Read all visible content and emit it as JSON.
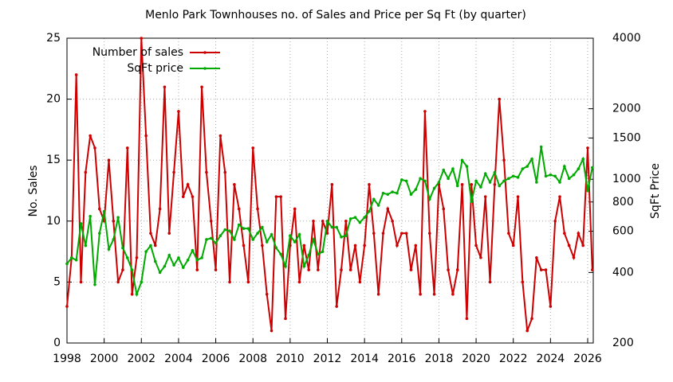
{
  "chart_data": {
    "type": "line",
    "title": "Menlo Park Townhouses no. of Sales and Price per Sq Ft (by quarter)",
    "y_label": "No. Sales",
    "y2_label": "SqFt Price",
    "legend": "top-left",
    "grid": true,
    "y2_log": true,
    "x": [
      1998,
      1998.25,
      1998.5,
      1998.75,
      1999,
      1999.25,
      1999.5,
      1999.75,
      2000,
      2000.25,
      2000.5,
      2000.75,
      2001,
      2001.25,
      2001.5,
      2001.75,
      2002,
      2002.25,
      2002.5,
      2002.75,
      2003,
      2003.25,
      2003.5,
      2003.75,
      2004,
      2004.25,
      2004.5,
      2004.75,
      2005,
      2005.25,
      2005.5,
      2005.75,
      2006,
      2006.25,
      2006.5,
      2006.75,
      2007,
      2007.25,
      2007.5,
      2007.75,
      2008,
      2008.25,
      2008.5,
      2008.75,
      2009,
      2009.25,
      2009.5,
      2009.75,
      2010,
      2010.25,
      2010.5,
      2010.75,
      2011,
      2011.25,
      2011.5,
      2011.75,
      2012,
      2012.25,
      2012.5,
      2012.75,
      2013,
      2013.25,
      2013.5,
      2013.75,
      2014,
      2014.25,
      2014.5,
      2014.75,
      2015,
      2015.25,
      2015.5,
      2015.75,
      2016,
      2016.25,
      2016.5,
      2016.75,
      2017,
      2017.25,
      2017.5,
      2017.75,
      2018,
      2018.25,
      2018.5,
      2018.75,
      2019,
      2019.25,
      2019.5,
      2019.75,
      2020,
      2020.25,
      2020.5,
      2020.75,
      2021,
      2021.25,
      2021.5,
      2021.75,
      2022,
      2022.25,
      2022.5,
      2022.75,
      2023,
      2023.25,
      2023.5,
      2023.75,
      2024,
      2024.25,
      2024.5,
      2024.75,
      2025,
      2025.25,
      2025.5,
      2025.75,
      2026,
      2026.25
    ],
    "series": [
      {
        "name": "Number of sales",
        "color": "#cc0000",
        "values": [
          3,
          7,
          22,
          5,
          14,
          17,
          16,
          11,
          10,
          15,
          10,
          5,
          6,
          16,
          4,
          7,
          25,
          17,
          9,
          8,
          11,
          21,
          9,
          14,
          19,
          12,
          13,
          12,
          6,
          21,
          14,
          10,
          6,
          17,
          14,
          5,
          13,
          11,
          8,
          5,
          16,
          11,
          8,
          4,
          1,
          12,
          12,
          2,
          8,
          11,
          5,
          8,
          6,
          10,
          6,
          10,
          9,
          13,
          3,
          6,
          10,
          6,
          8,
          5,
          8,
          13,
          9,
          4,
          9,
          11,
          10,
          8,
          9,
          9,
          6,
          8,
          4,
          19,
          9,
          4,
          13,
          11,
          6,
          4,
          6,
          13,
          2,
          13,
          8,
          7,
          12,
          5,
          13,
          20,
          15,
          9,
          8,
          12,
          5,
          1,
          2,
          7,
          6,
          6,
          3,
          10,
          12,
          9,
          8,
          7,
          9,
          8,
          16,
          6
        ]
      },
      {
        "name": "SqFt price",
        "color": "#00aa00",
        "axis": "y2",
        "values": [
          436,
          462,
          452,
          647,
          521,
          695,
          355,
          588,
          729,
          503,
          553,
          687,
          509,
          462,
          410,
          323,
          364,
          491,
          521,
          446,
          400,
          425,
          474,
          430,
          462,
          420,
          452,
          497,
          452,
          462,
          553,
          560,
          534,
          574,
          609,
          602,
          553,
          639,
          616,
          616,
          553,
          588,
          624,
          540,
          581,
          509,
          479,
          425,
          574,
          540,
          581,
          425,
          474,
          553,
          479,
          491,
          662,
          624,
          624,
          567,
          574,
          678,
          687,
          654,
          687,
          729,
          822,
          774,
          872,
          862,
          883,
          872,
          995,
          983,
          862,
          904,
          1007,
          983,
          822,
          915,
          971,
          1095,
          1007,
          1108,
          937,
          1205,
          1135,
          802,
          983,
          926,
          1056,
          971,
          1069,
          937,
          983,
          1007,
          1031,
          1019,
          1108,
          1135,
          1220,
          971,
          1375,
          1031,
          1044,
          1031,
          971,
          1135,
          1007,
          1044,
          1108,
          1220,
          893,
          1122
        ]
      }
    ],
    "xlim": [
      1998,
      2026.3
    ],
    "xticks": [
      1998,
      2000,
      2002,
      2004,
      2006,
      2008,
      2010,
      2012,
      2014,
      2016,
      2018,
      2020,
      2022,
      2024,
      2026
    ],
    "ylim": [
      0,
      25
    ],
    "yticks": [
      0,
      5,
      10,
      15,
      20,
      25
    ],
    "y2lim": [
      200,
      4000
    ],
    "y2ticks": [
      200,
      400,
      600,
      800,
      1000,
      1500,
      2000,
      4000
    ]
  }
}
